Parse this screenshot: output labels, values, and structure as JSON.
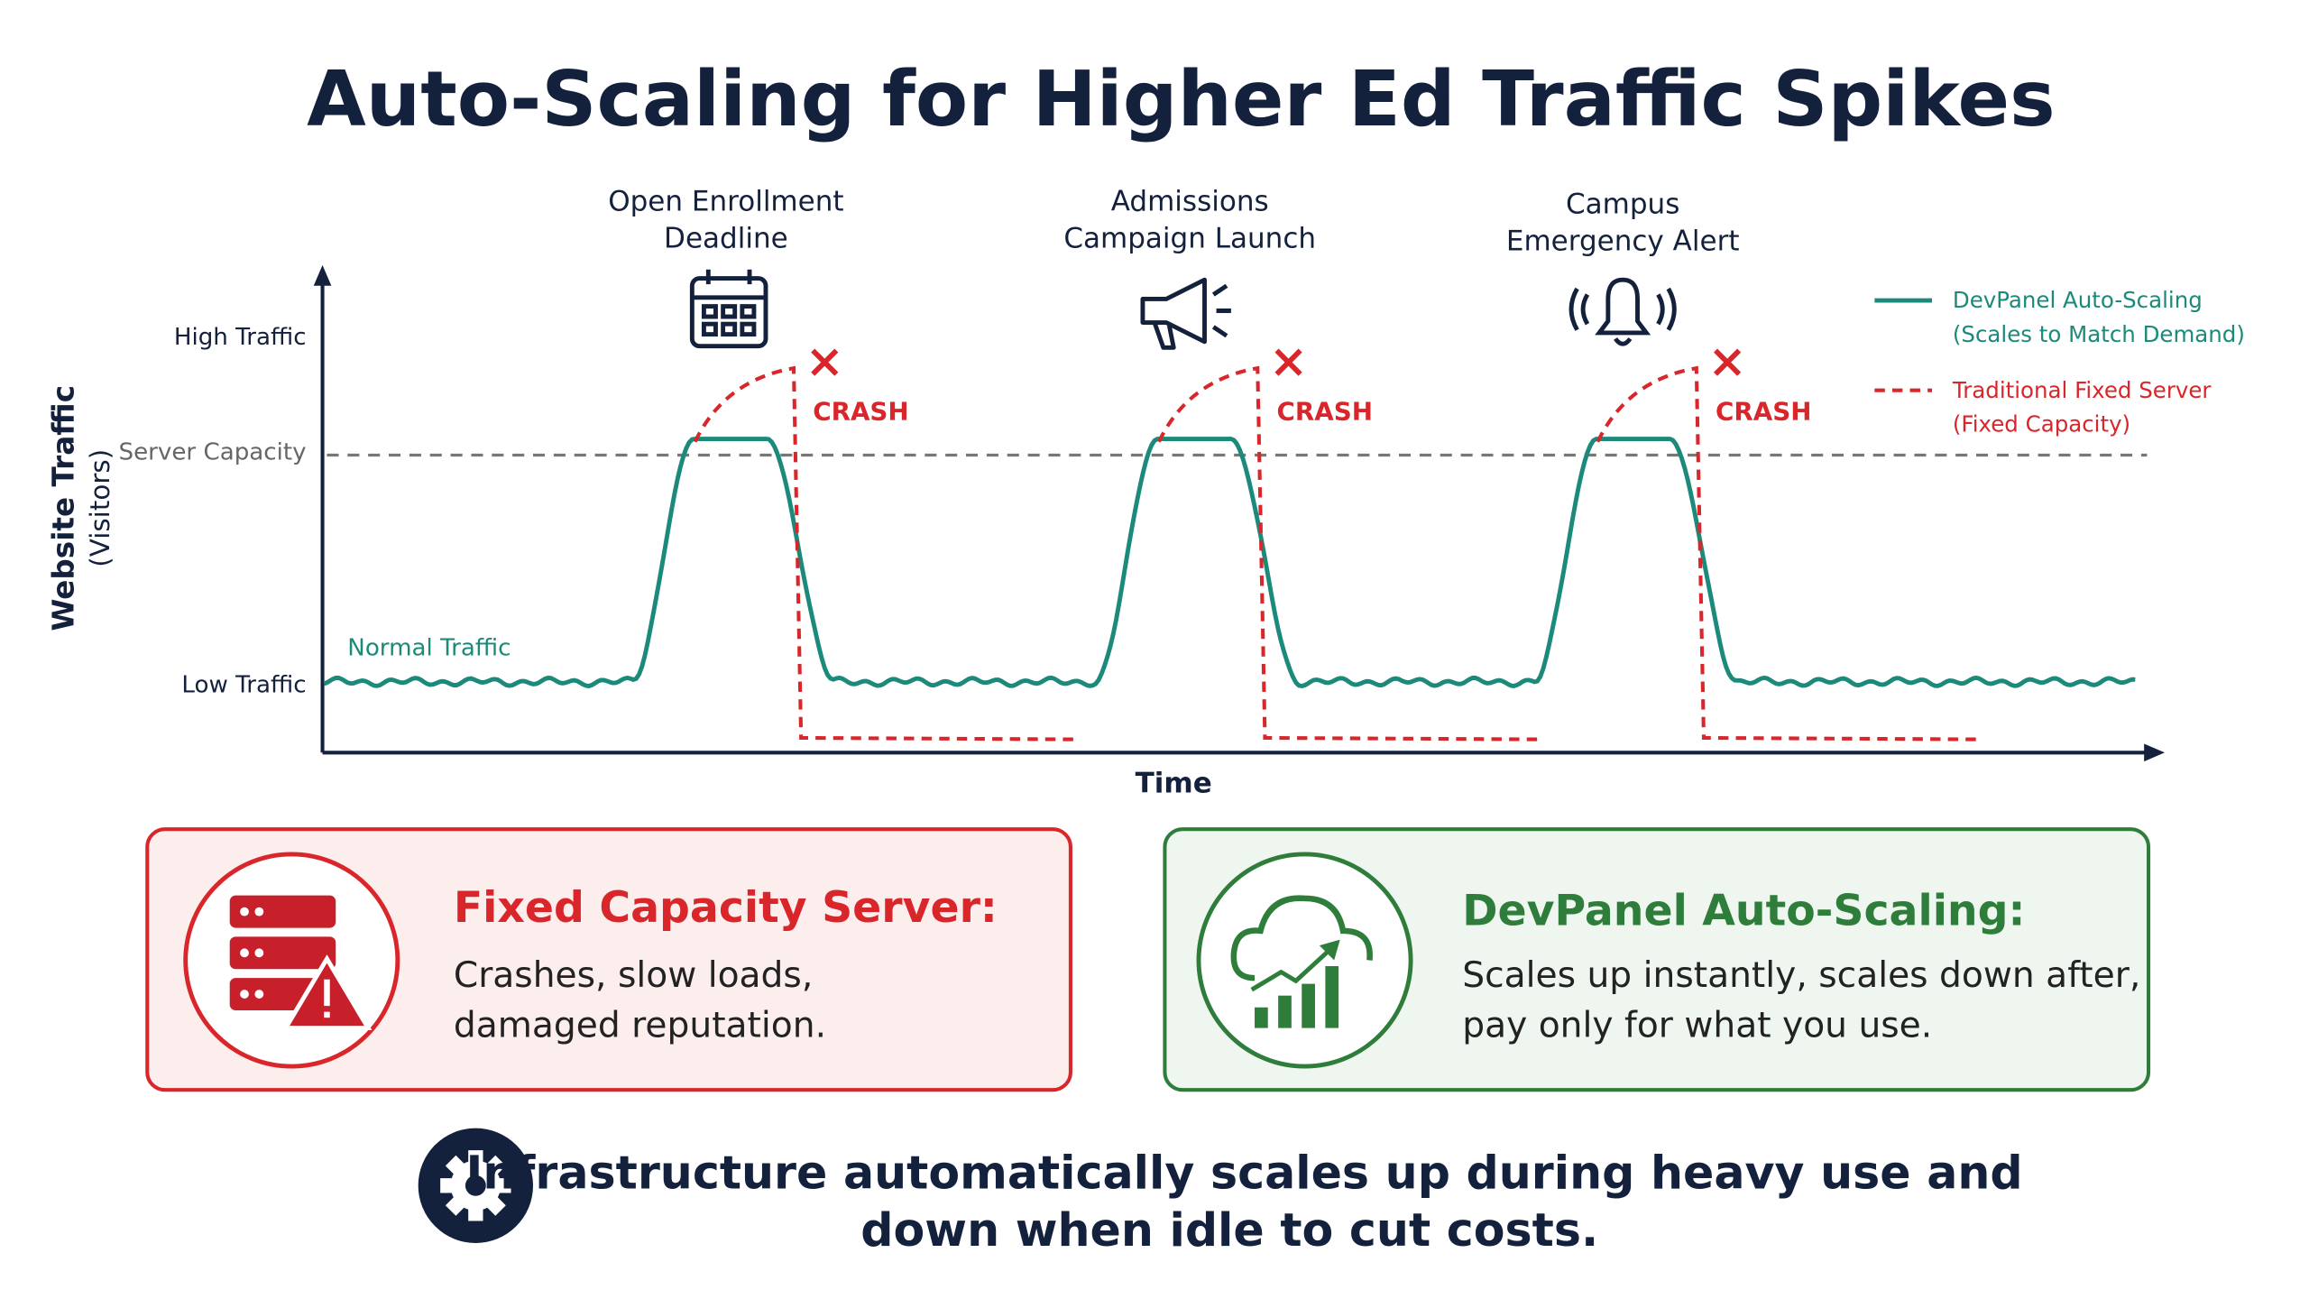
{
  "title": "Auto-Scaling for Higher Ed Traffic Spikes",
  "chart": {
    "y_axis_label": "Website Traffic",
    "y_axis_sublabel": "(Visitors)",
    "x_axis_label": "Time",
    "levels": {
      "high": "High Traffic",
      "capacity": "Server Capacity",
      "low": "Low Traffic"
    },
    "normal_traffic_label": "Normal Traffic",
    "events": [
      {
        "label_lines": [
          "Open Enrollment",
          "Deadline"
        ],
        "crash_label": "CRASH"
      },
      {
        "label_lines": [
          "Admissions",
          "Campaign Launch"
        ],
        "crash_label": "CRASH"
      },
      {
        "label_lines": [
          "Campus",
          "Emergency Alert"
        ],
        "crash_label": "CRASH"
      }
    ],
    "legend": [
      {
        "name": "DevPanel Auto-Scaling",
        "detail": "(Scales to Match Demand)"
      },
      {
        "name": "Traditional Fixed Server",
        "detail": "(Fixed Capacity)"
      }
    ]
  },
  "cards": [
    {
      "title": "Fixed Capacity Server:",
      "lines": [
        "Crashes, slow loads,",
        "damaged reputation."
      ]
    },
    {
      "title": "DevPanel Auto-Scaling:",
      "lines": [
        "Scales up instantly, scales down after,",
        "pay only for what you use."
      ]
    }
  ],
  "footer": [
    "Infrastructure automatically scales up during heavy use and",
    "down when idle to cut costs."
  ]
}
